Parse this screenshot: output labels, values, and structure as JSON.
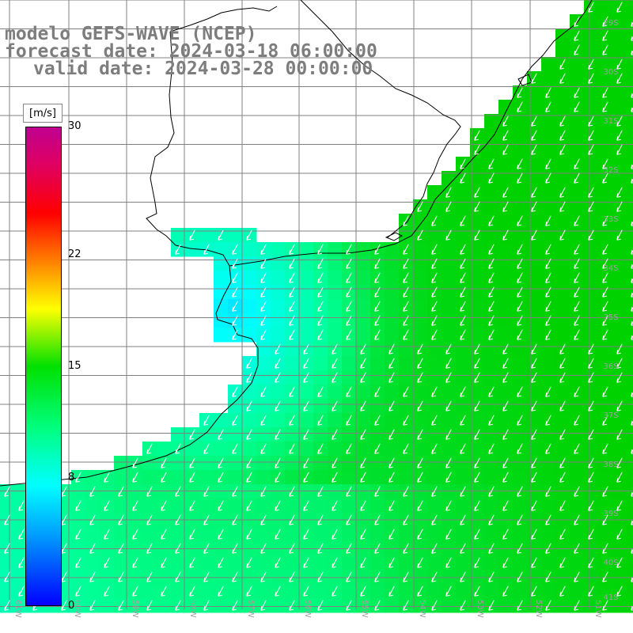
{
  "header": {
    "line1": "modelo GEFS-WAVE (NCEP)",
    "line2": "forecast date: 2024-03-18 06:00:00",
    "line3": "valid date: 2024-03-28 00:00:00"
  },
  "colorbar": {
    "unit": "[m/s]",
    "ticks": [
      {
        "label": "30",
        "value": 30
      },
      {
        "label": "22",
        "value": 22
      },
      {
        "label": "15",
        "value": 15
      },
      {
        "label": "8",
        "value": 8
      },
      {
        "label": "0",
        "value": 0
      }
    ]
  },
  "axes": {
    "lon_labels": [
      "61W",
      "60W",
      "59W",
      "58W",
      "57W",
      "56W",
      "55W",
      "54W",
      "53W",
      "52W",
      "51W"
    ],
    "lat_labels": [
      "29S",
      "30S",
      "31S",
      "32S",
      "33S",
      "34S",
      "35S",
      "36S",
      "37S",
      "38S",
      "39S",
      "40S",
      "41S"
    ]
  },
  "colors": {
    "low_speed": "#0000ff",
    "mid_speed": "#00ffff",
    "high_speed": "#00e000",
    "land": "#ffffff",
    "coast": "#000000",
    "grid": "#808080",
    "title_text": "#7d7d7d"
  }
}
